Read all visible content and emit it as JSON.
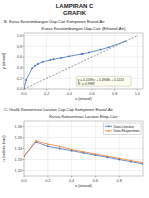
{
  "title": "LAMPIRAN C",
  "subtitle": "GRAFIK",
  "chart_data": [
    {
      "type": "line",
      "subtitle": "B. Kurva Kesetimbangan Uap-Cair Komponen Etanol-Air",
      "title": "Kurva Kesetimbangan Uap-Cair (Ethanol-Air)",
      "xlabel": "x (etanol)",
      "ylabel": "y (etanol)",
      "xlim": [
        0,
        1.05
      ],
      "ylim": [
        0.0,
        1.05
      ],
      "xticks": [
        {
          "value": 0,
          "label": "0.0"
        },
        0.2,
        0.4,
        0.6,
        0.8,
        {
          "value": 1.0,
          "label": "1.0"
        }
      ],
      "yticks": [
        {
          "value": 0.0,
          "label": "0.0"
        },
        0.2,
        0.4,
        0.6,
        0.8,
        {
          "value": 1.0,
          "label": "1.0"
        }
      ],
      "grid": true,
      "annotation": "y = 0.1039x² + 0.4948x + 0.1013\nR² = 0.9989",
      "series": [
        {
          "x": [
            0,
            0.019,
            0.0721,
            0.0966,
            0.1238,
            0.1661,
            0.2337,
            0.2608,
            0.3273,
            0.3965,
            0.5079,
            0.5198,
            0.5732,
            0.6763,
            0.7472,
            0.8943
          ],
          "values": [
            0,
            0.17,
            0.3891,
            0.4375,
            0.4704,
            0.5089,
            0.5445,
            0.558,
            0.583,
            0.6122,
            0.6564,
            0.6599,
            0.6841,
            0.7385,
            0.7815,
            0.8943
          ],
          "color": "#4472C4",
          "marker": "circle",
          "line_style": "solid"
        },
        {
          "x": [
            0,
            1
          ],
          "values": [
            0,
            1
          ],
          "color": "#808080",
          "line_style": "dashed"
        }
      ]
    },
    {
      "type": "line",
      "subtitle": "C. Grafik Konsentrasi Larutan Cap-Cap Komponen Etanol-Air",
      "title": "Kurva Konsentrasi Larutan Etap-Cair",
      "xlabel": "x (etanol)",
      "ylabel": "n (indeks bias)",
      "xlim": [
        0,
        1.0
      ],
      "ylim": [
        1.315,
        1.365
      ],
      "xticks": [
        {
          "value": 0,
          "label": "0.0"
        },
        0.2,
        0.4,
        0.6,
        0.8
      ],
      "yticks": [
        1.32,
        1.33,
        1.34,
        1.35,
        1.36
      ],
      "grid": true,
      "legend": "upper right",
      "x": [
        0,
        0.1,
        0.2,
        0.3,
        0.4,
        0.5,
        0.6,
        0.7,
        0.8,
        0.9,
        1.0
      ],
      "series": [
        {
          "name": "Data Literatur",
          "color": "#4472C4",
          "marker": "circle",
          "line_style": "solid",
          "values": [
            1.333,
            1.346,
            1.342,
            1.34,
            1.338,
            1.336,
            1.334,
            1.332,
            1.33,
            1.328,
            1.326
          ]
        },
        {
          "name": "Data Eksperimen",
          "color": "#ED7D31",
          "marker": "triangle",
          "line_style": "solid",
          "values": [
            1.333,
            1.347,
            1.344,
            1.342,
            1.339,
            1.337,
            1.335,
            1.333,
            1.331,
            1.329,
            1.327
          ]
        }
      ]
    }
  ]
}
